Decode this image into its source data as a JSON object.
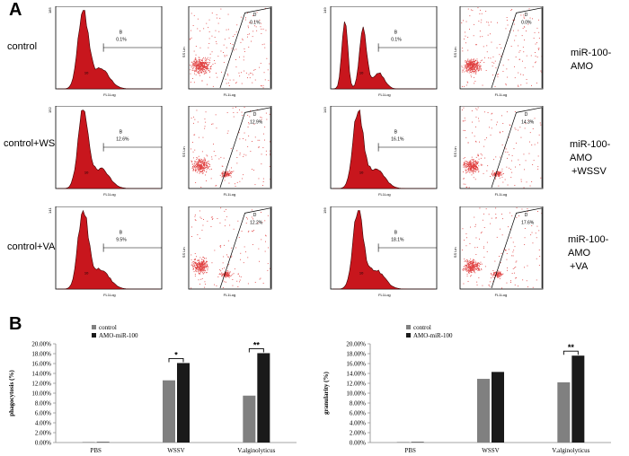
{
  "panel_a": {
    "letter": "A",
    "rows": [
      {
        "left_label": "control",
        "right_label": [
          "miR-100-AMO"
        ],
        "left_hist": {
          "gate": "B",
          "pct": "0.1%",
          "ymax": "185",
          "xlabel": "FL1Log"
        },
        "left_scatter": {
          "gate": "D",
          "pct": "0.1%",
          "ylabel": "SS Lin",
          "xlabel": "FL1Log"
        },
        "right_hist": {
          "gate": "B",
          "pct": "0.1%",
          "ymax": "149",
          "xlabel": "FL1Log"
        },
        "right_scatter": {
          "gate": "D",
          "pct": "0.0%",
          "ylabel": "SS Lin",
          "xlabel": "FL1Log"
        }
      },
      {
        "left_label": "control+WSSV",
        "right_label": [
          "miR-100-AMO",
          "+WSSV"
        ],
        "left_hist": {
          "gate": "B",
          "pct": "12.6%",
          "ymax": "152",
          "xlabel": "FL1Log"
        },
        "left_scatter": {
          "gate": "D",
          "pct": "12.9%",
          "ylabel": "SS Lin",
          "xlabel": "FL1Log"
        },
        "right_hist": {
          "gate": "B",
          "pct": "16.1%",
          "ymax": "143",
          "xlabel": "FL1Log"
        },
        "right_scatter": {
          "gate": "D",
          "pct": "14.3%",
          "ylabel": "SS Lin",
          "xlabel": "FL1Log"
        }
      },
      {
        "left_label": "control+VA",
        "right_label": [
          "miR-100-AMO",
          "+VA"
        ],
        "left_hist": {
          "gate": "B",
          "pct": "9.5%",
          "ymax": "141",
          "xlabel": "FL1Log"
        },
        "left_scatter": {
          "gate": "D",
          "pct": "12.2%",
          "ylabel": "SS Lin",
          "xlabel": "FL1Log"
        },
        "right_hist": {
          "gate": "B",
          "pct": "18.1%",
          "ymax": "156",
          "xlabel": "FL1Log"
        },
        "right_scatter": {
          "gate": "D",
          "pct": "17.6%",
          "ylabel": "SS Lin",
          "xlabel": "FL1Log"
        }
      }
    ],
    "colors": {
      "histogram_fill": "#c8161d",
      "dots": "#e04040",
      "gate_line": "#000000"
    }
  },
  "panel_b": {
    "letter": "B"
  },
  "chart_data": [
    {
      "type": "bar",
      "title": "",
      "ylabel": "phagocytosis (%)",
      "xlabel": "",
      "categories": [
        "PBS",
        "WSSV",
        "V.alginolyticus"
      ],
      "series": [
        {
          "name": "control",
          "color": "#808080",
          "values": [
            0.0,
            12.6,
            9.5
          ]
        },
        {
          "name": "AMO-miR-100",
          "color": "#1a1a1a",
          "values": [
            0.0,
            16.1,
            18.1
          ]
        }
      ],
      "ylim": [
        0,
        20
      ],
      "yticks": [
        "0.00%",
        "2.00%",
        "4.00%",
        "6.00%",
        "8.00%",
        "10.00%",
        "12.00%",
        "14.00%",
        "16.00%",
        "18.00%",
        "20.00%"
      ],
      "significance": [
        {
          "category": "WSSV",
          "label": "*"
        },
        {
          "category": "V.alginolyticus",
          "label": "**"
        }
      ],
      "legend": "top-left"
    },
    {
      "type": "bar",
      "title": "",
      "ylabel": "granularity (%)",
      "xlabel": "",
      "categories": [
        "PBS",
        "WSSV",
        "V.alginolyticus"
      ],
      "series": [
        {
          "name": "control",
          "color": "#808080",
          "values": [
            0.0,
            12.9,
            12.2
          ]
        },
        {
          "name": "AMO-miR-100",
          "color": "#1a1a1a",
          "values": [
            0.0,
            14.3,
            17.6
          ]
        }
      ],
      "ylim": [
        0,
        20
      ],
      "yticks": [
        "0.00%",
        "2.00%",
        "4.00%",
        "6.00%",
        "8.00%",
        "10.00%",
        "12.00%",
        "14.00%",
        "16.00%",
        "18.00%",
        "20.00%"
      ],
      "significance": [
        {
          "category": "V.alginolyticus",
          "label": "**"
        }
      ],
      "legend": "top-left"
    }
  ]
}
